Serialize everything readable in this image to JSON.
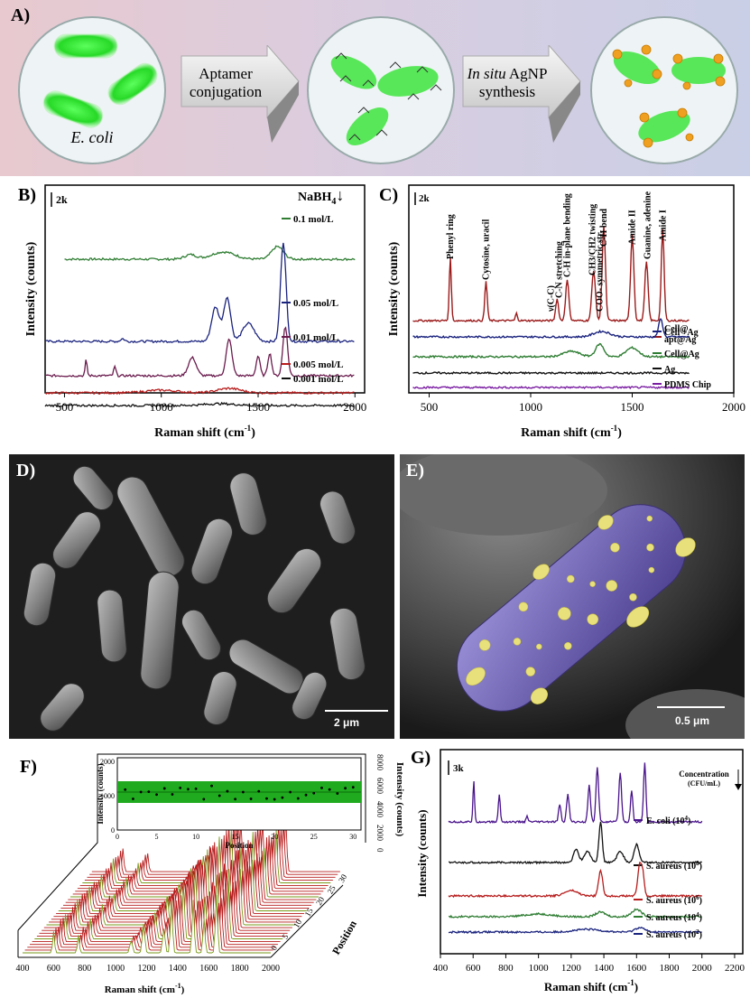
{
  "panelA": {
    "label": "A)",
    "ecoli_label": "E. coli",
    "step1": [
      "Aptamer",
      "conjugation"
    ],
    "step2_italic": "In situ",
    "step2_rest": " AgNP",
    "step2_line2": "synthesis"
  },
  "panelB": {
    "label": "B)",
    "scale": "2k",
    "reagent": "NaBH",
    "reagent_sub": "4",
    "arrow": "↓",
    "ylabel": "Intensity (counts)",
    "xlabel": "Raman shift (cm",
    "xlabel_sup": "-1",
    "xlabel_end": ")",
    "xticks": [
      "500",
      "1000",
      "1500",
      "2000"
    ],
    "series": [
      {
        "name": "0.1 mol/L",
        "color": "#2e7d32"
      },
      {
        "name": "0.05 mol/L",
        "color": "#1a237e"
      },
      {
        "name": "0.01 mol/L",
        "color": "#6a1b4d"
      },
      {
        "name": "0.005 mol/L",
        "color": "#b71c1c"
      },
      {
        "name": "0.001 mol/L",
        "color": "#111111"
      }
    ]
  },
  "panelC": {
    "label": "C)",
    "scale": "2k",
    "ylabel": "Intensity (counts)",
    "xlabel": "Raman shift (cm",
    "xlabel_sup": "-1",
    "xlabel_end": ")",
    "xticks": [
      "500",
      "1000",
      "1500",
      "2000"
    ],
    "annotations": [
      "Phenyl ring",
      "Cytosine, uracil",
      "ν(C-C)",
      "C-N stretching",
      "C-H in-plane bending",
      "COO- symmetric str.",
      "CH3/CH2 twisting",
      "C-H bend",
      "Amide II",
      "Guanine, adenine",
      "Amide I"
    ],
    "series": [
      {
        "name": "Cell@",
        "name2": "apt@Ag",
        "color": "#9b1b1b"
      },
      {
        "name": "Cell +Ag",
        "color": "#1a237e"
      },
      {
        "name": "Cell@Ag",
        "color": "#2e7d32"
      },
      {
        "name": "Ag",
        "color": "#111111"
      },
      {
        "name": "PDMS Chip",
        "color": "#7b1fa2"
      }
    ]
  },
  "panelD": {
    "label": "D)",
    "scale": "2 μm"
  },
  "panelE": {
    "label": "E)",
    "scale": "0.5 μm"
  },
  "panelF": {
    "label": "F)",
    "inset_ylabel": "Intensity (counts)",
    "inset_xlabel": "Position",
    "inset_yticks": [
      "0",
      "1000",
      "2000"
    ],
    "inset_xticks": [
      "0",
      "5",
      "10",
      "15",
      "20",
      "25",
      "30"
    ],
    "right_ticks": [
      "8000",
      "6000",
      "4000",
      "2000",
      "0"
    ],
    "right_label": "Intensity (counts)",
    "pos_label": "Position",
    "pos_ticks": [
      "0",
      "5",
      "10",
      "15",
      "20",
      "25",
      "30"
    ],
    "xticks": [
      "400",
      "600",
      "800",
      "1000",
      "1200",
      "1400",
      "1600",
      "1800",
      "2000"
    ],
    "xlabel": "Raman shift (cm",
    "xlabel_sup": "-1",
    "xlabel_end": ")"
  },
  "panelG": {
    "label": "G)",
    "scale": "3k",
    "conc_label": "Concentration",
    "conc_unit": "(CFU/mL)",
    "ylabel": "Intensity (counts)",
    "xlabel": "Raman shift (cm",
    "xlabel_sup": "-1",
    "xlabel_end": ")",
    "xticks": [
      "400",
      "600",
      "800",
      "1000",
      "1200",
      "1400",
      "1600",
      "1800",
      "2000",
      "2200"
    ],
    "series": [
      {
        "name": "E. coli (10",
        "exp": "4",
        "color": "#4a148c"
      },
      {
        "name": "S. aureus (10",
        "exp": "8",
        "color": "#111111"
      },
      {
        "name": "S. aureus (10",
        "exp": "6",
        "color": "#b71c1c"
      },
      {
        "name": "S. aureus (10",
        "exp": "4",
        "color": "#2e7d32"
      },
      {
        "name": "S. aureus (10",
        "exp": "2",
        "color": "#1a237e"
      }
    ]
  }
}
